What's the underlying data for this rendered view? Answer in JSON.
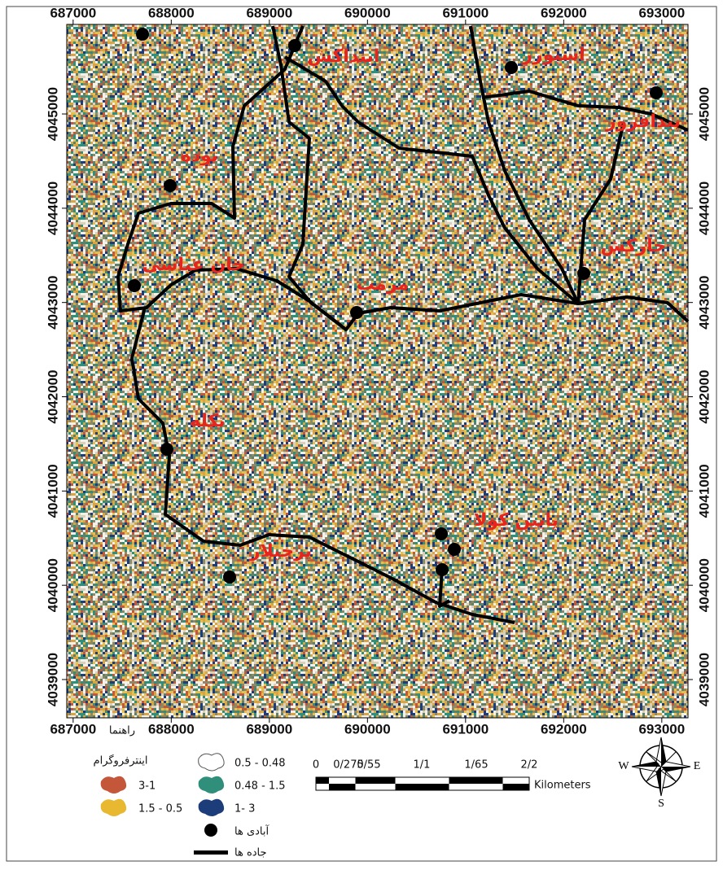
{
  "axes": {
    "xlim": [
      686935,
      693267
    ],
    "ylim": [
      4038594,
      4045950
    ],
    "xticks": [
      687000,
      688000,
      689000,
      690000,
      691000,
      692000,
      693000
    ],
    "yticks": [
      4045000,
      4044000,
      4043000,
      4042000,
      4041000,
      4040000,
      4039000
    ]
  },
  "places": [
    "اینداکش",
    "اسبورز",
    "پیدافروز",
    "توده",
    "خان عباسی",
    "مرمت",
    "خارکش",
    "تکله",
    "پایین کولا",
    "پرچیلار"
  ],
  "legend": {
    "title": "راهنما",
    "heading": "اینترفروگرام",
    "items": [
      "3-1",
      "1.5 - 0.5",
      "0.5 - 0.48",
      "0.48 - 1.5",
      "1- 3",
      "آبادی ها",
      "جاده ها"
    ]
  },
  "scale": {
    "labels": [
      "0",
      "0/275",
      "0/55",
      "1/1",
      "1/65",
      "2/2"
    ],
    "unit": "Kilometers"
  },
  "compass": [
    "W",
    "E",
    "S"
  ]
}
